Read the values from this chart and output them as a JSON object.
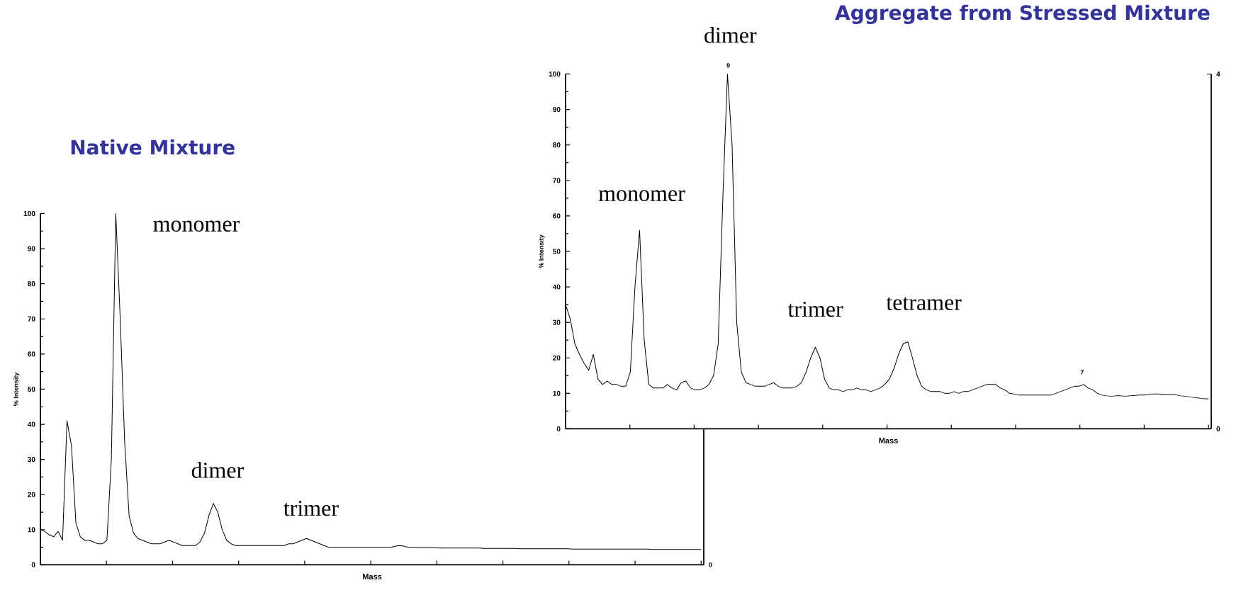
{
  "chart_data": [
    {
      "type": "line",
      "title": "Native Mixture",
      "xlabel": "Mass",
      "ylabel": "% Intensity",
      "color": "#000000",
      "categories": [
        null,
        null,
        null,
        null,
        null,
        null,
        null,
        null,
        null,
        null,
        null,
        null,
        null,
        null,
        null,
        null,
        null,
        null,
        null,
        null,
        null,
        null,
        null,
        null,
        null,
        null,
        null,
        null,
        null,
        null,
        null,
        null,
        null,
        null,
        null,
        null,
        null,
        null,
        null,
        null,
        null,
        null,
        null,
        null,
        null,
        null,
        null,
        null,
        null,
        null,
        null,
        null,
        null,
        null,
        null,
        null,
        null,
        null,
        null,
        null,
        null,
        null,
        null,
        null,
        null,
        null,
        null,
        null,
        null,
        null,
        null,
        null,
        null,
        null,
        null,
        null,
        null,
        null,
        null,
        null,
        null,
        null,
        null,
        null,
        null,
        null,
        null,
        null,
        null,
        null,
        null,
        null,
        null,
        null,
        null,
        null,
        null,
        null,
        null,
        null,
        null,
        null,
        null,
        null,
        null,
        null,
        null,
        null,
        null,
        null,
        null,
        null,
        null,
        null,
        null,
        null,
        null,
        null,
        null,
        null,
        null,
        null,
        null,
        null,
        null,
        null,
        null,
        null,
        null,
        null,
        null,
        null,
        null,
        null,
        null,
        null,
        null,
        null,
        null,
        null,
        null,
        null,
        null,
        null,
        null,
        null,
        null,
        null,
        null,
        null
      ],
      "values": [
        10,
        9.5,
        8.5,
        8,
        9.5,
        7,
        41,
        34,
        12,
        8,
        7,
        7,
        6.5,
        6,
        6,
        7,
        30,
        100,
        70,
        35,
        14,
        9,
        7.5,
        7,
        6.5,
        6,
        6,
        6,
        6.5,
        7,
        6.5,
        6,
        5.5,
        5.5,
        5.5,
        5.5,
        6.5,
        9,
        14,
        17.5,
        15,
        10,
        7,
        6,
        5.5,
        5.5,
        5.5,
        5.5,
        5.5,
        5.5,
        5.5,
        5.5,
        5.5,
        5.5,
        5.5,
        5.5,
        6,
        6,
        6.5,
        7,
        7.5,
        7,
        6.5,
        6,
        5.5,
        5,
        5,
        5,
        5,
        5,
        5,
        5,
        5,
        5,
        5,
        5,
        5,
        5,
        5,
        5,
        5.3,
        5.5,
        5.3,
        5,
        5,
        5,
        4.9,
        4.9,
        4.9,
        4.9,
        4.8,
        4.8,
        4.8,
        4.8,
        4.8,
        4.8,
        4.8,
        4.8,
        4.8,
        4.8,
        4.7,
        4.7,
        4.7,
        4.7,
        4.7,
        4.7,
        4.7,
        4.7,
        4.6,
        4.6,
        4.6,
        4.6,
        4.6,
        4.6,
        4.6,
        4.6,
        4.6,
        4.6,
        4.6,
        4.6,
        4.5,
        4.5,
        4.5,
        4.5,
        4.5,
        4.5,
        4.5,
        4.5,
        4.5,
        4.5,
        4.5,
        4.5,
        4.5,
        4.5,
        4.5,
        4.5,
        4.5,
        4.5,
        4.4,
        4.4,
        4.4,
        4.4,
        4.4,
        4.4,
        4.4,
        4.4,
        4.4,
        4.4,
        4.4,
        4.4
      ],
      "ylim": [
        0,
        100
      ],
      "yticks": [
        0,
        10,
        20,
        30,
        40,
        50,
        60,
        70,
        80,
        90,
        100
      ],
      "annotations": [
        "monomer",
        "dimer",
        "trimer",
        "0"
      ]
    },
    {
      "type": "line",
      "title": "Aggregate from Stressed Mixture",
      "xlabel": "Mass",
      "ylabel": "% Intensity",
      "color": "#000000",
      "categories": [
        null,
        null,
        null,
        null,
        null,
        null,
        null,
        null,
        null,
        null,
        null,
        null,
        null,
        null,
        null,
        null,
        null,
        null,
        null,
        null,
        null,
        null,
        null,
        null,
        null,
        null,
        null,
        null,
        null,
        null,
        null,
        null,
        null,
        null,
        null,
        null,
        null,
        null,
        null,
        null,
        null,
        null,
        null,
        null,
        null,
        null,
        null,
        null,
        null,
        null,
        null,
        null,
        null,
        null,
        null,
        null,
        null,
        null,
        null,
        null,
        null,
        null,
        null,
        null,
        null,
        null,
        null,
        null,
        null,
        null,
        null,
        null,
        null,
        null,
        null,
        null,
        null,
        null,
        null,
        null,
        null,
        null,
        null,
        null,
        null,
        null,
        null,
        null,
        null,
        null,
        null,
        null,
        null,
        null,
        null,
        null,
        null,
        null,
        null,
        null,
        null,
        null,
        null,
        null,
        null,
        null,
        null,
        null,
        null,
        null,
        null,
        null,
        null,
        null,
        null,
        null,
        null,
        null,
        null,
        null,
        null,
        null,
        null,
        null,
        null,
        null,
        null,
        null,
        null,
        null,
        null,
        null,
        null,
        null,
        null,
        null,
        null,
        null,
        null,
        null
      ],
      "values": [
        35,
        31,
        24,
        21,
        18.5,
        16.5,
        21,
        14,
        12.5,
        13.5,
        12.5,
        12.5,
        12,
        12,
        16,
        40,
        56,
        25,
        12.5,
        11.5,
        11.5,
        11.5,
        12.5,
        11.5,
        11,
        13,
        13.5,
        11.5,
        11,
        11,
        11.5,
        12.5,
        15,
        24,
        65,
        100,
        80,
        30,
        16,
        13,
        12.5,
        12,
        12,
        12,
        12.5,
        13,
        12,
        11.5,
        11.5,
        11.5,
        12,
        13,
        16,
        20,
        23,
        20,
        14,
        11.5,
        11,
        11,
        10.5,
        11,
        11,
        11.5,
        11,
        11,
        10.5,
        11,
        11.5,
        12.5,
        14,
        17,
        21,
        24,
        24.5,
        20,
        15,
        12,
        11,
        10.5,
        10.5,
        10.5,
        10,
        10,
        10.5,
        10,
        10.5,
        10.5,
        11,
        11.5,
        12,
        12.5,
        12.5,
        12.5,
        11.5,
        11,
        10,
        9.8,
        9.5,
        9.5,
        9.5,
        9.5,
        9.5,
        9.5,
        9.5,
        9.5,
        10,
        10.5,
        11,
        11.5,
        12,
        12,
        12.5,
        11.5,
        11,
        10,
        9.5,
        9.3,
        9.2,
        9.3,
        9.3,
        9.2,
        9.3,
        9.4,
        9.5,
        9.5,
        9.6,
        9.8,
        9.8,
        9.7,
        9.6,
        9.8,
        9.6,
        9.3,
        9.2,
        9,
        8.8,
        8.7,
        8.5,
        8.5
      ],
      "ylim": [
        0,
        100
      ],
      "yticks": [
        0,
        10,
        20,
        30,
        40,
        50,
        60,
        70,
        80,
        90,
        100
      ],
      "y2lim": [
        0,
        4
      ],
      "y2ticks": [
        0,
        4
      ],
      "annotations": [
        "dimer",
        "monomer",
        "trimer",
        "tetramer",
        "9",
        "7"
      ]
    }
  ]
}
